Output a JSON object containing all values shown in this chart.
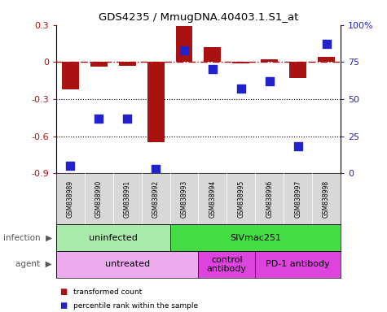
{
  "title": "GDS4235 / MmugDNA.40403.1.S1_at",
  "samples": [
    "GSM838989",
    "GSM838990",
    "GSM838991",
    "GSM838992",
    "GSM838993",
    "GSM838994",
    "GSM838995",
    "GSM838996",
    "GSM838997",
    "GSM838998"
  ],
  "bar_values": [
    -0.22,
    -0.04,
    -0.03,
    -0.65,
    0.29,
    0.12,
    -0.01,
    0.02,
    -0.13,
    0.04
  ],
  "pct_values": [
    5,
    37,
    37,
    3,
    83,
    70,
    57,
    62,
    18,
    87
  ],
  "bar_color": "#aa1111",
  "pct_color": "#2222cc",
  "ylim_left": [
    -0.9,
    0.3
  ],
  "ylim_right": [
    0,
    100
  ],
  "yticks_left": [
    -0.9,
    -0.6,
    -0.3,
    0.0,
    0.3
  ],
  "ytick_labels_left": [
    "-0.9",
    "-0.6",
    "-0.3",
    "0",
    "0.3"
  ],
  "yticks_right": [
    0,
    25,
    50,
    75,
    100
  ],
  "ytick_labels_right": [
    "0",
    "25",
    "50",
    "75",
    "100%"
  ],
  "hline_y": 0.0,
  "dotted_hlines": [
    -0.3,
    -0.6
  ],
  "infection_groups": [
    {
      "label": "uninfected",
      "start": 0,
      "end": 4,
      "color": "#aaeaaa"
    },
    {
      "label": "SIVmac251",
      "start": 4,
      "end": 10,
      "color": "#44dd44"
    }
  ],
  "agent_groups": [
    {
      "label": "untreated",
      "start": 0,
      "end": 5,
      "color": "#eeaaee"
    },
    {
      "label": "control\nantibody",
      "start": 5,
      "end": 7,
      "color": "#dd44dd"
    },
    {
      "label": "PD-1 antibody",
      "start": 7,
      "end": 10,
      "color": "#dd44dd"
    }
  ],
  "legend_items": [
    {
      "color": "#aa1111",
      "label": "transformed count"
    },
    {
      "color": "#2222cc",
      "label": "percentile rank within the sample"
    }
  ],
  "bar_width": 0.6,
  "pct_marker_size": 55
}
